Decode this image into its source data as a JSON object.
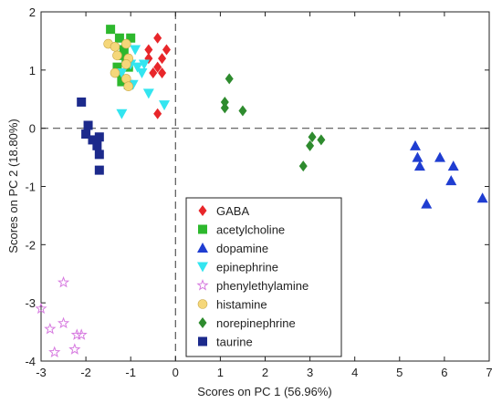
{
  "chart_data": {
    "type": "scatter",
    "title": "",
    "xlabel": "Scores on PC 1 (56.96%)",
    "ylabel": "Scores on PC 2 (18.80%)",
    "xlim": [
      -3,
      7
    ],
    "ylim": [
      -4,
      2
    ],
    "x_ticks": [
      -3,
      -2,
      -1,
      0,
      1,
      2,
      3,
      4,
      5,
      6,
      7
    ],
    "y_ticks": [
      -4,
      -3,
      -2,
      -1,
      0,
      1,
      2
    ],
    "reference_lines": {
      "x": 0,
      "y": 0,
      "style": "dashed"
    },
    "legend_position": "bottom-center",
    "series": [
      {
        "name": "GABA",
        "marker": "diamond",
        "color": "#e8262a",
        "points": [
          [
            -0.6,
            1.35
          ],
          [
            -0.4,
            1.55
          ],
          [
            -0.2,
            1.35
          ],
          [
            -0.3,
            1.2
          ],
          [
            -0.6,
            1.2
          ],
          [
            -0.4,
            1.05
          ],
          [
            -0.3,
            0.95
          ],
          [
            -0.5,
            0.95
          ],
          [
            -0.4,
            0.25
          ]
        ]
      },
      {
        "name": "acetylcholine",
        "marker": "square",
        "color": "#2db82d",
        "points": [
          [
            -1.45,
            1.7
          ],
          [
            -1.25,
            1.55
          ],
          [
            -1.0,
            1.55
          ],
          [
            -1.15,
            1.35
          ],
          [
            -1.2,
            1.25
          ],
          [
            -1.1,
            1.15
          ],
          [
            -1.3,
            1.05
          ],
          [
            -1.05,
            1.05
          ],
          [
            -1.25,
            0.95
          ],
          [
            -1.2,
            0.8
          ],
          [
            -1.05,
            0.75
          ]
        ]
      },
      {
        "name": "dopamine",
        "marker": "triangle-up",
        "color": "#1f3dd1",
        "points": [
          [
            5.35,
            -0.3
          ],
          [
            5.4,
            -0.5
          ],
          [
            5.45,
            -0.65
          ],
          [
            5.9,
            -0.5
          ],
          [
            6.2,
            -0.65
          ],
          [
            6.15,
            -0.9
          ],
          [
            5.6,
            -1.3
          ],
          [
            6.85,
            -1.2
          ]
        ]
      },
      {
        "name": "epinephrine",
        "marker": "triangle-down",
        "color": "#33e5f0",
        "points": [
          [
            -0.9,
            1.35
          ],
          [
            -0.85,
            1.05
          ],
          [
            -0.7,
            1.1
          ],
          [
            -1.0,
            1.1
          ],
          [
            -0.75,
            0.95
          ],
          [
            -1.2,
            0.95
          ],
          [
            -0.95,
            0.75
          ],
          [
            -0.6,
            0.6
          ],
          [
            -0.25,
            0.4
          ],
          [
            -1.2,
            0.25
          ]
        ]
      },
      {
        "name": "phenylethylamine",
        "marker": "star",
        "color": "#d77be0",
        "points": [
          [
            -2.5,
            -2.65
          ],
          [
            -3.0,
            -3.1
          ],
          [
            -2.5,
            -3.35
          ],
          [
            -2.8,
            -3.45
          ],
          [
            -2.2,
            -3.55
          ],
          [
            -2.1,
            -3.55
          ],
          [
            -2.25,
            -3.8
          ],
          [
            -2.7,
            -3.85
          ]
        ]
      },
      {
        "name": "histamine",
        "marker": "circle",
        "color": "#f5d77a",
        "points": [
          [
            -1.5,
            1.45
          ],
          [
            -1.35,
            1.4
          ],
          [
            -1.1,
            1.45
          ],
          [
            -1.3,
            1.25
          ],
          [
            -1.05,
            1.2
          ],
          [
            -1.1,
            1.1
          ],
          [
            -1.35,
            0.95
          ],
          [
            -1.1,
            0.85
          ],
          [
            -1.05,
            0.72
          ]
        ]
      },
      {
        "name": "norepinephrine",
        "marker": "diamond",
        "color": "#2e8b2e",
        "points": [
          [
            1.2,
            0.85
          ],
          [
            1.1,
            0.45
          ],
          [
            1.1,
            0.35
          ],
          [
            1.5,
            0.3
          ],
          [
            3.05,
            -0.15
          ],
          [
            3.25,
            -0.2
          ],
          [
            3.0,
            -0.3
          ],
          [
            2.85,
            -0.65
          ]
        ]
      },
      {
        "name": "taurine",
        "marker": "square",
        "color": "#1c2a8c",
        "points": [
          [
            -2.1,
            0.45
          ],
          [
            -1.95,
            0.05
          ],
          [
            -2.0,
            -0.1
          ],
          [
            -1.85,
            -0.2
          ],
          [
            -1.7,
            -0.15
          ],
          [
            -1.75,
            -0.3
          ],
          [
            -1.7,
            -0.45
          ],
          [
            -1.7,
            -0.72
          ]
        ]
      }
    ]
  }
}
